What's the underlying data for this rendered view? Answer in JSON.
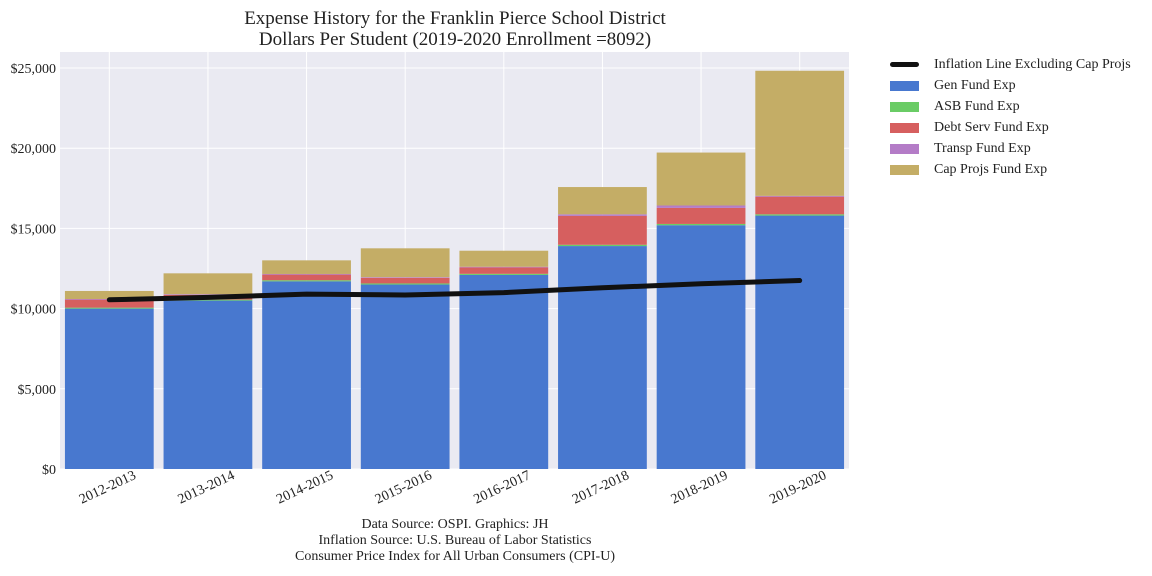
{
  "chart_data": {
    "type": "bar",
    "stacked": true,
    "title": "Expense History for the Franklin Pierce School District",
    "subtitle": "Dollars Per Student (2019-2020 Enrollment =8092)",
    "categories": [
      "2012-2013",
      "2013-2014",
      "2014-2015",
      "2015-2016",
      "2016-2017",
      "2017-2018",
      "2018-2019",
      "2019-2020"
    ],
    "ylim": [
      0,
      26000
    ],
    "yticks": [
      0,
      5000,
      10000,
      15000,
      20000,
      25000
    ],
    "ytick_labels": [
      "$0",
      "$5,000",
      "$10,000",
      "$15,000",
      "$20,000",
      "$25,000"
    ],
    "grid": true,
    "legend_position": "outside-right",
    "series": [
      {
        "name": "Gen Fund Exp",
        "color": "#4878cf",
        "values": [
          10000,
          10500,
          11700,
          11500,
          12100,
          13900,
          15200,
          15800
        ]
      },
      {
        "name": "ASB Fund Exp",
        "color": "#6acc65",
        "values": [
          60,
          60,
          70,
          70,
          70,
          80,
          80,
          80
        ]
      },
      {
        "name": "Debt Serv Fund Exp",
        "color": "#d65f5f",
        "values": [
          500,
          300,
          350,
          350,
          400,
          1800,
          1000,
          1100
        ]
      },
      {
        "name": "Transp Fund Exp",
        "color": "#b47cc7",
        "values": [
          40,
          40,
          40,
          40,
          40,
          100,
          150,
          50
        ]
      },
      {
        "name": "Cap Projs Fund Exp",
        "color": "#c4ad66",
        "values": [
          500,
          1300,
          850,
          1800,
          1000,
          1700,
          3300,
          7800
        ]
      }
    ],
    "line": {
      "name": "Inflation Line Excluding Cap Projs",
      "color": "#111111",
      "values": [
        10550,
        10700,
        10900,
        10850,
        11000,
        11300,
        11550,
        11750
      ]
    }
  },
  "footer": {
    "line1": "Data Source: OSPI. Graphics: JH",
    "line2": "Inflation Source: U.S. Bureau of Labor Statistics",
    "line3": "Consumer Price Index for All Urban Consumers (CPI-U)"
  }
}
